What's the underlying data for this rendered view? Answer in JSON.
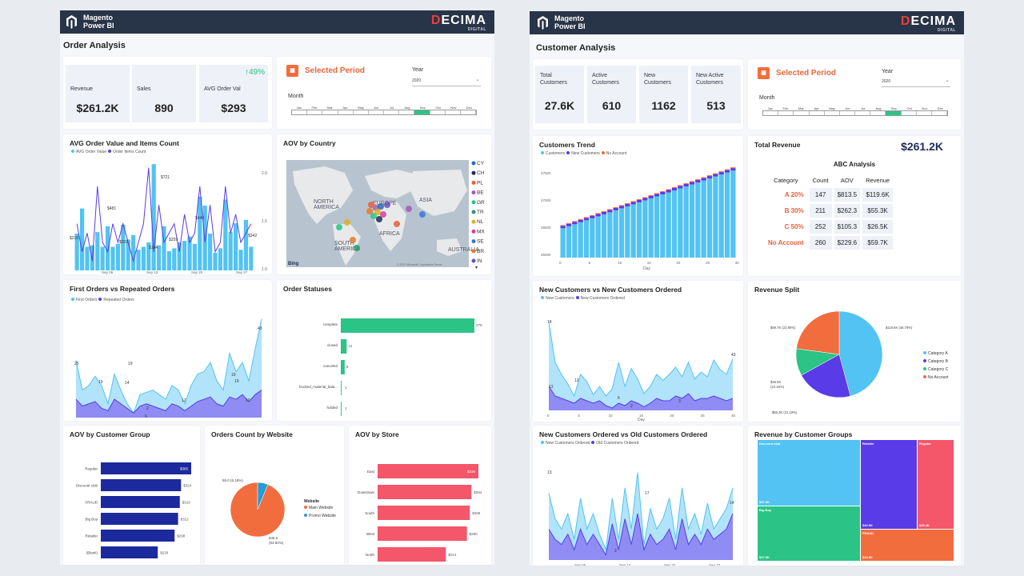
{
  "left": {
    "brand": {
      "line1": "Magento",
      "line2": "Power BI",
      "logo": "DECIMA",
      "logo_sub": "DIGITAL"
    },
    "title": "Order Analysis",
    "kpis": [
      {
        "label": "Revenue",
        "value": "$261.2K"
      },
      {
        "label": "Sales",
        "value": "890"
      },
      {
        "label": "AVG Order Val",
        "value": "$293",
        "delta": "↑49%"
      }
    ],
    "period": {
      "title": "Selected Period",
      "year_label": "Year",
      "year_value": "2020",
      "month_label": "Month",
      "months": [
        "Jan",
        "Feb",
        "Mar",
        "Apr",
        "May",
        "Jun",
        "Jul",
        "Aug",
        "Sep",
        "Oct",
        "Nov",
        "Dec"
      ],
      "selected_month": "Sep"
    },
    "avg_chart": {
      "title": "AVG Order Value and Items Count",
      "legend": [
        "AVG Order Value",
        "Order Items Count"
      ],
      "x_ticks": [
        "Sep 06",
        "Sep 13",
        "Sep 20",
        "Sep 27"
      ],
      "y_right": [
        "2.0",
        "1.5",
        "1.0"
      ],
      "labels": [
        "$721",
        "$481",
        "$440",
        "$216",
        "$202",
        "$144",
        "$342",
        "$259"
      ],
      "chart_data": {
        "type": "bar",
        "series": [
          {
            "name": "AVG Order Value",
            "values": [
              250,
              420,
              160,
              170,
              260,
              160,
              300,
              160,
              180,
              310,
              210,
              240,
              140,
              160,
              190,
              721,
              170,
              300,
              130,
              150,
              190,
              200,
              230,
              180,
              500,
              440,
              250,
              120,
              150,
              480,
              260,
              320,
              140,
              342,
              160
            ]
          },
          {
            "name": "Order Items Count",
            "values": [
              1.4,
              1.1,
              1.3,
              1.0,
              1.8,
              1.2,
              1.1,
              1.4,
              1.2,
              1.4,
              1.2,
              1.0,
              1.2,
              1.4,
              2.0,
              1.1,
              1.6,
              1.2,
              1.3,
              1.4,
              1.1,
              1.5,
              1.2,
              1.3,
              1.8,
              1.2,
              1.6,
              1.1,
              1.2,
              1.8,
              1.3,
              1.5,
              1.2,
              1.3,
              1.4
            ]
          }
        ]
      }
    },
    "map": {
      "title": "AOV by Country",
      "regions": [
        "NORTH\nAMERICA",
        "EUROPE",
        "ASIA",
        "AFRICA",
        "SOUTH\nAMERICA",
        "AUSTRALIA"
      ],
      "legend": [
        {
          "code": "CY",
          "color": "#2a6bb5"
        },
        {
          "code": "CH",
          "color": "#1e2a5a"
        },
        {
          "code": "PL",
          "color": "#e8603a"
        },
        {
          "code": "BE",
          "color": "#a35ab8"
        },
        {
          "code": "GR",
          "color": "#2bc486"
        },
        {
          "code": "TR",
          "color": "#2a9a6a"
        },
        {
          "code": "NL",
          "color": "#e0b020"
        },
        {
          "code": "MX",
          "color": "#d23fa0"
        },
        {
          "code": "SE",
          "color": "#3a7ad8"
        },
        {
          "code": "BR",
          "color": "#e87a2a"
        },
        {
          "code": "IN",
          "color": "#6b4cc4"
        }
      ],
      "copyright": "© 2021 Microsoft Corporation Terms",
      "bing": "Bing"
    },
    "first_orders": {
      "title": "First Orders vs Repeated Orders",
      "legend": [
        "First Orders",
        "Repeated Orders"
      ],
      "x_ticks": [
        "Sep 06",
        "Sep 13",
        "Sep 20",
        "Sep 27"
      ],
      "labels": [
        "25",
        "19",
        "14",
        "6",
        "19",
        "2",
        "12",
        "43",
        "19",
        "10",
        "19"
      ],
      "chart_data": {
        "type": "area",
        "series": [
          {
            "name": "First Orders",
            "values": [
              25,
              12,
              14,
              18,
              14,
              6,
              19,
              12,
              6,
              2,
              10,
              11,
              12,
              10,
              8,
              14,
              12,
              6,
              14,
              19,
              20,
              24,
              16,
              12,
              28,
              20,
              24,
              16,
              30,
              43
            ]
          },
          {
            "name": "Repeated Orders",
            "values": [
              8,
              5,
              6,
              7,
              4,
              3,
              8,
              6,
              4,
              2,
              5,
              6,
              5,
              4,
              3,
              6,
              5,
              3,
              5,
              7,
              8,
              9,
              6,
              5,
              9,
              8,
              10,
              7,
              10,
              12
            ]
          }
        ]
      }
    },
    "statuses": {
      "title": "Order Statuses",
      "chart_data": {
        "type": "bar",
        "categories": [
          "complete",
          "closed",
          "canceled",
          "booked_material_bala...",
          "holded"
        ],
        "values": [
          275,
          12,
          8,
          1,
          1
        ]
      }
    },
    "aov_group": {
      "title": "AOV by Customer Group",
      "chart_data": {
        "type": "bar",
        "categories": [
          "Regular",
          "Discount club",
          "FRAUD",
          "Big Boy",
          "Retailer",
          "(Blank)"
        ],
        "values": [
          365,
          324,
          319,
          312,
          298,
          230
        ],
        "labels": [
          "$365",
          "$324",
          "$319",
          "$312",
          "$298",
          "$230"
        ]
      }
    },
    "orders_web": {
      "title": "Orders Count by Website",
      "legend_title": "Website",
      "chart_data": {
        "type": "pie",
        "categories": [
          "Main Website",
          "Promo Website"
        ],
        "values": [
          835,
          55
        ],
        "labels": [
          "835.0 (93.82%)",
          "55.0 (6.18%)"
        ],
        "colors": [
          "#f26d3d",
          "#2a9ad8"
        ]
      }
    },
    "aov_store": {
      "title": "AOV by Store",
      "chart_data": {
        "type": "bar",
        "categories": [
          "East",
          "Downtown",
          "South",
          "West",
          "North"
        ],
        "values": [
          316,
          294,
          289,
          280,
          214
        ],
        "labels": [
          "$316",
          "$294",
          "$289",
          "$280",
          "$214"
        ]
      }
    }
  },
  "right": {
    "brand": {
      "line1": "Magento",
      "line2": "Power BI",
      "logo": "DECIMA",
      "logo_sub": "DIGITAL"
    },
    "title": "Customer Analysis",
    "kpis": [
      {
        "label": "Total\nCustomers",
        "value": "27.6K"
      },
      {
        "label": "Active\nCustomers",
        "value": "610"
      },
      {
        "label": "New\nCustomers",
        "value": "1162"
      },
      {
        "label": "New Active\nCustomers",
        "value": "513"
      }
    ],
    "period": {
      "title": "Selected Period",
      "year_label": "Year",
      "year_value": "2020",
      "month_label": "Month",
      "months": [
        "Jan",
        "Feb",
        "Mar",
        "Apr",
        "May",
        "Jun",
        "Jul",
        "Aug",
        "Sep",
        "Oct",
        "Nov",
        "Dec"
      ],
      "selected_month": "Sep"
    },
    "trend": {
      "title": "Customers Trend",
      "legend": [
        "Customers",
        "New Customers",
        "No Account"
      ],
      "y_ticks": [
        "27500",
        "27000",
        "26500",
        "26000"
      ],
      "x_ticks": [
        "0",
        "5",
        "10",
        "15",
        "20",
        "25",
        "30"
      ],
      "xlabel": "Day",
      "chart_data": {
        "type": "bar",
        "x": [
          1,
          2,
          3,
          4,
          5,
          6,
          7,
          8,
          9,
          10,
          11,
          12,
          13,
          14,
          15,
          16,
          17,
          18,
          19,
          20,
          21,
          22,
          23,
          24,
          25,
          26,
          27,
          28,
          29,
          30
        ],
        "values": [
          26540,
          26580,
          26620,
          26660,
          26700,
          26740,
          26780,
          26820,
          26860,
          26900,
          26940,
          26980,
          27020,
          27060,
          27100,
          27140,
          27180,
          27220,
          27260,
          27300,
          27340,
          27380,
          27420,
          27460,
          27500,
          27540,
          27580,
          27620,
          27660,
          27700
        ]
      }
    },
    "total_rev": {
      "label": "Total Revenue",
      "value": "$261.2K",
      "abc_title": "ABC Analysis",
      "headers": [
        "Category",
        "Count",
        "AOV",
        "Revenue"
      ],
      "rows": [
        [
          "A 20%",
          "147",
          "$813.5",
          "$119.6K"
        ],
        [
          "B 30%",
          "211",
          "$262.3",
          "$55.3K"
        ],
        [
          "C 50%",
          "252",
          "$105.3",
          "$26.5K"
        ],
        [
          "No Account",
          "260",
          "$229.6",
          "$59.7K"
        ]
      ]
    },
    "new_vs_ordered": {
      "title": "New Customers vs New Customers Ordered",
      "legend": [
        "New Customers",
        "New Customers Ordered"
      ],
      "x_ticks": [
        "0",
        "5",
        "10",
        "15",
        "20",
        "25",
        "30"
      ],
      "xlabel": "Day",
      "labels": [
        "74",
        "13",
        "12",
        "6",
        "2",
        "3",
        "43"
      ],
      "chart_data": {
        "type": "area",
        "series": [
          {
            "name": "New Customers",
            "values": [
              74,
              40,
              30,
              22,
              12,
              30,
              24,
              13,
              20,
              12,
              18,
              40,
              20,
              35,
              26,
              14,
              20,
              30,
              25,
              30,
              36,
              28,
              40,
              26,
              32,
              28,
              42,
              34,
              30,
              43
            ]
          },
          {
            "name": "New Customers Ordered",
            "values": [
              20,
              12,
              10,
              8,
              6,
              10,
              8,
              6,
              8,
              4,
              2,
              6,
              4,
              8,
              6,
              3,
              6,
              10,
              8,
              8,
              12,
              10,
              14,
              8,
              10,
              10,
              12,
              10,
              8,
              10
            ]
          }
        ]
      }
    },
    "rev_split": {
      "title": "Revenue Split",
      "chart_data": {
        "type": "pie",
        "categories": [
          "Category A",
          "Category B",
          "Category C",
          "No Account"
        ],
        "values": [
          119.6,
          55.3,
          26.5,
          59.7
        ],
        "labels": [
          "$119.6K (45.79%)",
          "$55.3K (21.19%)",
          "$26.5K (10.16%)",
          "$59.7K (22.86%)"
        ],
        "colors": [
          "#52c3f2",
          "#5a3be8",
          "#2bc486",
          "#f26d3d"
        ]
      }
    },
    "new_old": {
      "title": "New Customers Ordered vs Old Customers Ordered",
      "legend": [
        "New Customers Ordered",
        "Old Customers Ordered"
      ],
      "x_ticks": [
        "Sep 06",
        "Sep 13",
        "Sep 20",
        "Sep 27"
      ],
      "labels": [
        "13",
        "2",
        "17",
        "14"
      ],
      "chart_data": {
        "type": "area",
        "series": [
          {
            "name": "New Customers Ordered",
            "values": [
              13,
              8,
              6,
              9,
              4,
              12,
              6,
              9,
              5,
              2,
              12,
              4,
              14,
              6,
              17,
              3,
              10,
              6,
              8,
              12,
              4,
              14,
              6,
              9,
              5,
              11,
              6,
              8,
              10,
              14
            ]
          },
          {
            "name": "Old Customers Ordered",
            "values": [
              6,
              4,
              3,
              5,
              2,
              6,
              3,
              5,
              3,
              1,
              7,
              2,
              8,
              3,
              9,
              2,
              5,
              3,
              4,
              6,
              2,
              8,
              3,
              5,
              3,
              6,
              4,
              5,
              6,
              9
            ]
          }
        ]
      }
    },
    "rev_groups": {
      "title": "Revenue by Customer Groups",
      "chart_data": {
        "type": "treemap",
        "categories": [
          "Discount club",
          "Big Boy",
          "Retailer",
          "Regular",
          "FRAUD"
        ],
        "values": [
          57.9,
          47.9,
          42.8,
          36.4,
          24.5
        ],
        "labels": [
          "$57.9K",
          "$47.9K",
          "$42.8K",
          "$36.4K",
          "$24.5K"
        ],
        "colors": [
          "#52c3f2",
          "#2bc486",
          "#5a3be8",
          "#f4566a",
          "#f26d3d"
        ]
      }
    }
  }
}
